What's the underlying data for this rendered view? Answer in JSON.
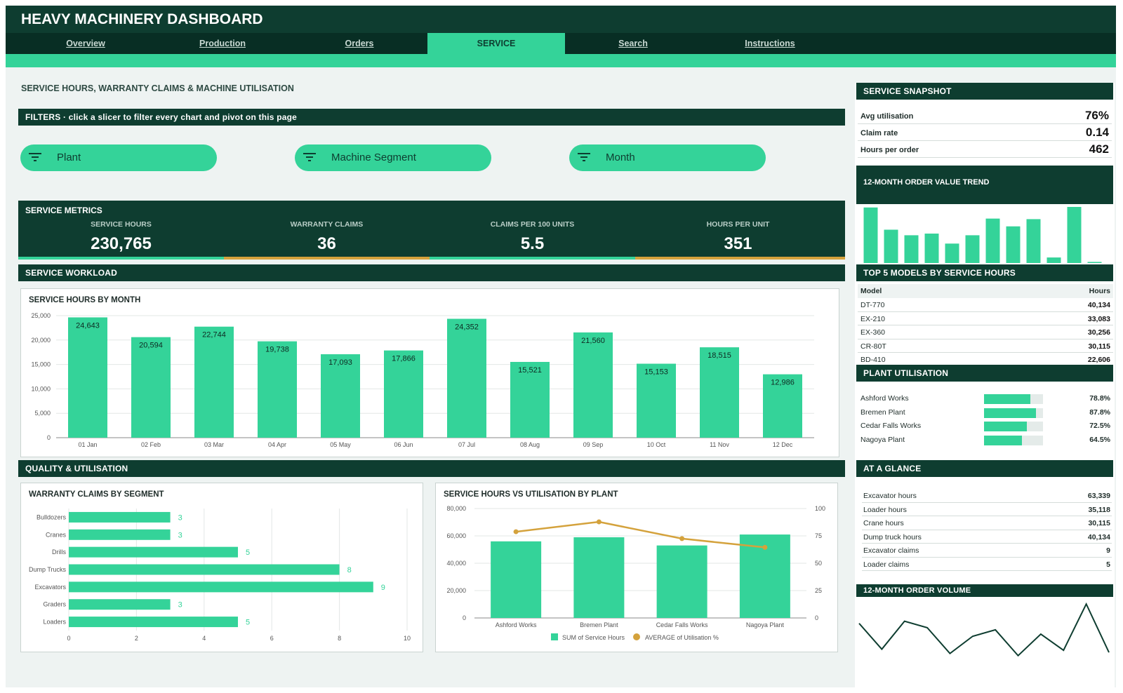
{
  "header": {
    "title": "HEAVY MACHINERY DASHBOARD"
  },
  "nav": [
    {
      "label": "Overview",
      "active": false
    },
    {
      "label": "Production",
      "active": false
    },
    {
      "label": "Orders",
      "active": false
    },
    {
      "label": "SERVICE",
      "active": true
    },
    {
      "label": "Search",
      "active": false
    },
    {
      "label": "Instructions",
      "active": false
    }
  ],
  "page": {
    "subtitle": "SERVICE HOURS, WARRANTY CLAIMS & MACHINE UTILISATION"
  },
  "filters": {
    "title": "FILTERS  ·  click a slicer to filter every chart and pivot on this page",
    "slicers": [
      "Plant",
      "Machine Segment",
      "Month"
    ]
  },
  "metrics": {
    "title": "SERVICE METRICS",
    "items": [
      {
        "label": "SERVICE HOURS",
        "value": "230,765"
      },
      {
        "label": "WARRANTY CLAIMS",
        "value": "36"
      },
      {
        "label": "CLAIMS PER 100 UNITS",
        "value": "5.5"
      },
      {
        "label": "HOURS PER UNIT",
        "value": "351"
      }
    ]
  },
  "sections": {
    "workload": "SERVICE WORKLOAD",
    "quality": "QUALITY & UTILISATION"
  },
  "snapshot": {
    "title": "SERVICE SNAPSHOT",
    "rows": [
      {
        "label": "Avg utilisation",
        "value": "76%"
      },
      {
        "label": "Claim rate",
        "value": "0.14"
      },
      {
        "label": "Hours per order",
        "value": "462"
      }
    ]
  },
  "order_value_trend": {
    "title": "12-MONTH ORDER VALUE TREND",
    "values": [
      100,
      60,
      50,
      53,
      35,
      50,
      80,
      66,
      79,
      10,
      101,
      2
    ]
  },
  "top_models": {
    "title": "TOP 5 MODELS BY SERVICE HOURS",
    "col_model": "Model",
    "col_hours": "Hours",
    "rows": [
      {
        "model": "DT-770",
        "hours": "40,134"
      },
      {
        "model": "EX-210",
        "hours": "33,083"
      },
      {
        "model": "EX-360",
        "hours": "30,256"
      },
      {
        "model": "CR-80T",
        "hours": "30,115"
      },
      {
        "model": "BD-410",
        "hours": "22,606"
      }
    ]
  },
  "plant_utilisation": {
    "title": "PLANT UTILISATION",
    "rows": [
      {
        "plant": "Ashford Works",
        "value": 0.788,
        "label": "78.8%"
      },
      {
        "plant": "Bremen Plant",
        "value": 0.878,
        "label": "87.8%"
      },
      {
        "plant": "Cedar Falls Works",
        "value": 0.725,
        "label": "72.5%"
      },
      {
        "plant": "Nagoya Plant",
        "value": 0.645,
        "label": "64.5%"
      }
    ]
  },
  "at_a_glance": {
    "title": "AT A GLANCE",
    "rows": [
      {
        "label": "Excavator hours",
        "value": "63,339"
      },
      {
        "label": "Loader hours",
        "value": "35,118"
      },
      {
        "label": "Crane hours",
        "value": "30,115"
      },
      {
        "label": "Dump truck hours",
        "value": "40,134"
      },
      {
        "label": "Excavator claims",
        "value": "9"
      },
      {
        "label": "Loader claims",
        "value": "5"
      }
    ]
  },
  "order_volume": {
    "title": "12-MONTH ORDER VOLUME",
    "values": [
      68,
      44,
      70,
      64,
      40,
      56,
      62,
      38,
      58,
      43,
      86,
      41
    ]
  },
  "colors": {
    "dark": "#0e3d30",
    "accent": "#34d399",
    "gold": "#d4a23c"
  },
  "chart_data": [
    {
      "type": "bar",
      "title": "SERVICE HOURS BY MONTH",
      "categories": [
        "01 Jan",
        "02 Feb",
        "03 Mar",
        "04 Apr",
        "05 May",
        "06 Jun",
        "07 Jul",
        "08 Aug",
        "09 Sep",
        "10 Oct",
        "11 Nov",
        "12 Dec"
      ],
      "values": [
        24643,
        20594,
        22744,
        19738,
        17093,
        17866,
        24352,
        15521,
        21560,
        15153,
        18515,
        12986
      ],
      "value_labels": [
        "24,643",
        "20,594",
        "22,744",
        "19,738",
        "17,093",
        "17,866",
        "24,352",
        "15,521",
        "21,560",
        "15,153",
        "18,515",
        "12,986"
      ],
      "ylim": [
        0,
        25000
      ],
      "yticks": [
        "0",
        "5,000",
        "10,000",
        "15,000",
        "20,000",
        "25,000"
      ]
    },
    {
      "type": "bar",
      "orientation": "horizontal",
      "title": "WARRANTY CLAIMS BY SEGMENT",
      "categories": [
        "Bulldozers",
        "Cranes",
        "Drills",
        "Dump Trucks",
        "Excavators",
        "Graders",
        "Loaders"
      ],
      "values": [
        3,
        3,
        5,
        8,
        9,
        3,
        5
      ],
      "xlim": [
        0,
        10
      ],
      "xticks": [
        "0",
        "2",
        "4",
        "6",
        "8",
        "10"
      ]
    },
    {
      "type": "bar",
      "title": "SERVICE HOURS VS UTILISATION BY PLANT",
      "categories": [
        "Ashford Works",
        "Bremen Plant",
        "Cedar Falls Works",
        "Nagoya Plant"
      ],
      "series": [
        {
          "name": "SUM of Service Hours",
          "values": [
            56000,
            59000,
            53000,
            61000
          ],
          "axis": "left",
          "kind": "bar"
        },
        {
          "name": "AVERAGE of Utilisation %",
          "values": [
            78.8,
            87.8,
            72.5,
            64.5
          ],
          "axis": "right",
          "kind": "line"
        }
      ],
      "ylim_left": [
        0,
        80000
      ],
      "yticks_left": [
        "0",
        "20,000",
        "40,000",
        "60,000",
        "80,000"
      ],
      "ylim_right": [
        0,
        100
      ],
      "yticks_right": [
        "0",
        "25",
        "50",
        "75",
        "100"
      ]
    }
  ]
}
